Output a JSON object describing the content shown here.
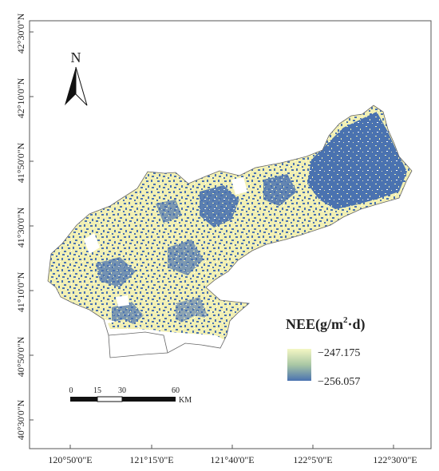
{
  "map": {
    "y_ticks": [
      "42°30'0\"N",
      "42°10'0\"N",
      "41°50'0\"N",
      "41°30'0\"N",
      "41°10'0\"N",
      "40°50'0\"N",
      "40°30'0\"N"
    ],
    "x_ticks": [
      "120°50'0\"E",
      "121°15'0\"E",
      "121°40'0\"E",
      "122°5'0\"E",
      "122°30'0\"E"
    ],
    "north_label": "N",
    "legend": {
      "title_prefix": "NEE(g/m",
      "title_sup": "2",
      "title_suffix": "·d)",
      "max_label": "−247.175",
      "min_label": "−256.057",
      "color_high": "#f4f7c4",
      "color_low": "#4a72b0"
    },
    "scale_bar": {
      "labels": [
        "0",
        "15",
        "30",
        "60"
      ],
      "unit": "KM"
    },
    "colors": {
      "high_nee": "#f2f0b4",
      "low_nee": "#4a72b0",
      "frame": "#555555"
    }
  }
}
